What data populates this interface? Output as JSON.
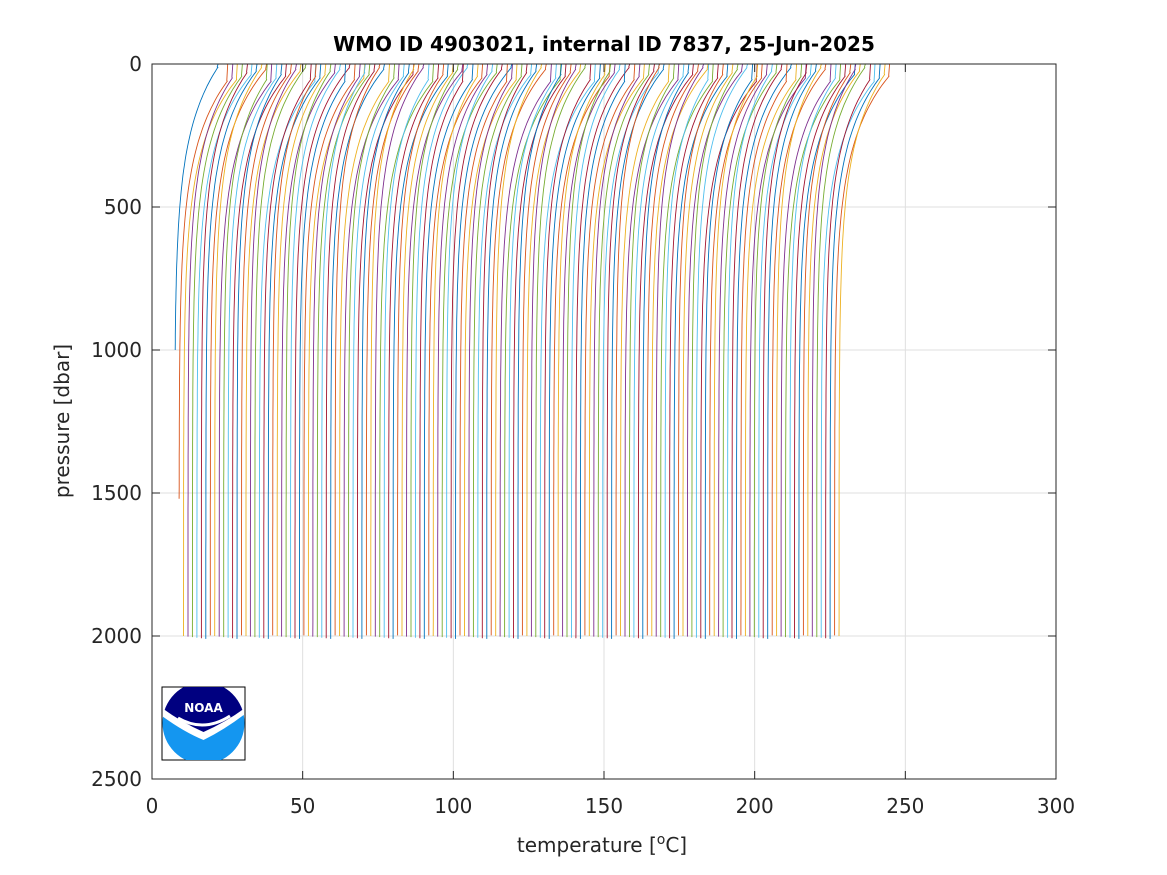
{
  "chart_data": {
    "type": "line",
    "title": "WMO ID 4903021, internal ID 7837, 25-Jun-2025",
    "xlabel": "temperature [",
    "xlabel_superscript": "o",
    "xlabel_suffix": "C]",
    "ylabel": "pressure [dbar]",
    "xlim": [
      0,
      300
    ],
    "ylim": [
      0,
      2500
    ],
    "y_reversed": true,
    "xticks": [
      0,
      50,
      100,
      150,
      200,
      250,
      300
    ],
    "yticks": [
      0,
      500,
      1000,
      1500,
      2000,
      2500
    ],
    "grid": true,
    "profiles": {
      "description_note": "Waterfall of temperature profiles, each offset along x",
      "count": 150,
      "first_deep_offset": 7.5,
      "last_deep_offset": 228,
      "surface_temp_excess": 17,
      "max_pressure": 2010,
      "colors": [
        "#0072BD",
        "#D95319",
        "#EDB120",
        "#7E2F8E",
        "#77AC30",
        "#4DBEEE",
        "#A2142F"
      ]
    },
    "logo": {
      "text": "NOAA",
      "colors": {
        "top": "#000080",
        "bottom": "#1496F0"
      }
    }
  }
}
